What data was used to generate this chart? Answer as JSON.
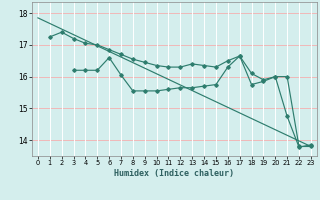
{
  "title": "",
  "xlabel": "Humidex (Indice chaleur)",
  "bg_color": "#d4eeed",
  "grid_color_v": "#ffffff",
  "grid_color_h": "#f0b8b8",
  "line_color": "#2e7d6e",
  "xlim": [
    -0.5,
    23.5
  ],
  "ylim": [
    13.5,
    18.35
  ],
  "yticks": [
    14,
    15,
    16,
    17,
    18
  ],
  "xticks": [
    0,
    1,
    2,
    3,
    4,
    5,
    6,
    7,
    8,
    9,
    10,
    11,
    12,
    13,
    14,
    15,
    16,
    17,
    18,
    19,
    20,
    21,
    22,
    23
  ],
  "line1_x": [
    0,
    23
  ],
  "line1_y": [
    17.85,
    13.8
  ],
  "line2_x": [
    1,
    2,
    3,
    4,
    5,
    6,
    7,
    8,
    9,
    10,
    11,
    12,
    13,
    14,
    15,
    16,
    17,
    18,
    19,
    20,
    21,
    22,
    23
  ],
  "line2_y": [
    17.25,
    17.4,
    17.2,
    17.05,
    17.0,
    16.85,
    16.7,
    16.55,
    16.45,
    16.35,
    16.3,
    16.3,
    16.4,
    16.35,
    16.3,
    16.5,
    16.65,
    16.1,
    15.9,
    16.0,
    16.0,
    13.8,
    13.8
  ],
  "line3_x": [
    3,
    4,
    5,
    6,
    7,
    8,
    9,
    10,
    11,
    12,
    13,
    14,
    15,
    16,
    17,
    18,
    19,
    20,
    21,
    22,
    23
  ],
  "line3_y": [
    16.2,
    16.2,
    16.2,
    16.6,
    16.05,
    15.55,
    15.55,
    15.55,
    15.6,
    15.65,
    15.65,
    15.7,
    15.75,
    16.3,
    16.65,
    15.75,
    15.85,
    16.0,
    14.75,
    13.78,
    13.85
  ]
}
